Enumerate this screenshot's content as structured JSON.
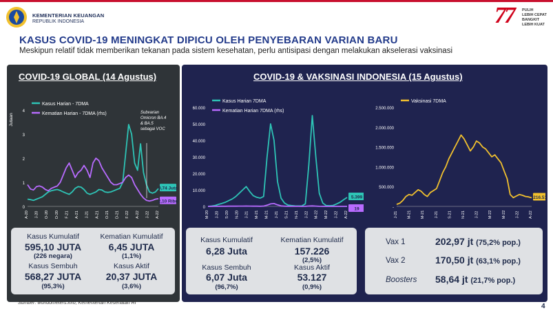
{
  "header": {
    "org_line1": "KEMENTERIAN KEUANGAN",
    "org_line2": "REPUBLIK INDONESIA",
    "brand_number": "77",
    "brand_lines": [
      "PULIH",
      "LEBIH CEPAT",
      "BANGKIT",
      "LEBIH KUAT"
    ],
    "title": "KASUS COVID-19 MENINGKAT DIPICU OLEH PENYEBARAN VARIAN BARU",
    "subtitle": "Meskipun relatif tidak memberikan tekanan pada sistem kesehatan,  perlu antisipasi dengan melakukan akselerasi vaksinasi"
  },
  "colors": {
    "accent": "#c8102e",
    "teal": "#2ec4b6",
    "purple": "#b86bff",
    "gold": "#f2c12e",
    "navy": "#1f234f"
  },
  "panel_global": {
    "title": "COVID-19 GLOBAL (14 Agustus)",
    "stats": [
      {
        "label": "Kasus Kumulatif",
        "value": "595,10 JUTA",
        "sub": "(226 negara)"
      },
      {
        "label": "Kematian Kumulatif",
        "value": "6,45 JUTA",
        "sub": "(1,1%)"
      },
      {
        "label": "Kasus Sembuh",
        "value": "568,27 JUTA",
        "sub": "(95,3%)"
      },
      {
        "label": "Kasus Aktif",
        "value": "20,37 JUTA",
        "sub": "(3,6%)"
      }
    ]
  },
  "panel_indonesia": {
    "title": "COVID-19 & VAKSINASI INDONESIA (15 Agustus)",
    "stats": [
      {
        "label": "Kasus Kumulatif",
        "value": "6,28 Juta",
        "sub": ""
      },
      {
        "label": "Kematian Kumulatif",
        "value": "157.226",
        "sub": "(2,5%)"
      },
      {
        "label": "Kasus Sembuh",
        "value": "6,07 Juta",
        "sub": "(96,7%)"
      },
      {
        "label": "Kasus Aktif",
        "value": "53.127",
        "sub": "(0,9%)"
      }
    ],
    "vaccine": [
      {
        "label": "Vax 1",
        "value": "202,97 jt",
        "pct": "(75,2% pop.)"
      },
      {
        "label": "Vax 2",
        "value": "170,50 jt",
        "pct": "(63,1% pop.)"
      },
      {
        "label": "Boosters",
        "value": "58,64 jt",
        "pct": "(21,7% pop.)"
      }
    ]
  },
  "footer": {
    "source": "Sumber: worldometers.info, Kementerian Kesehatan RI",
    "page": "4"
  },
  "chart_data": [
    {
      "type": "line",
      "title": "",
      "ylabel": "Jutaan",
      "ylim": [
        0,
        4
      ],
      "yticks": [
        "0",
        "1",
        "2",
        "3",
        "4"
      ],
      "x_ticks": [
        "A-20",
        "J-20",
        "O-20",
        "D-20",
        "F-21",
        "A-21",
        "J-21",
        "A-21",
        "O-21",
        "D-21",
        "F-22",
        "A-22",
        "J-22",
        "A-22"
      ],
      "annotation": "Subvarian Omicron BA.4 & BA.5 sebagai VOC",
      "series": [
        {
          "name": "Kasus Harian - 7DMA",
          "color": "#2ec4b6",
          "end_label": "0,74 Juta",
          "values": [
            0.3,
            0.28,
            0.25,
            0.3,
            0.35,
            0.4,
            0.5,
            0.6,
            0.65,
            0.68,
            0.7,
            0.66,
            0.6,
            0.55,
            0.5,
            0.6,
            0.75,
            0.82,
            0.8,
            0.7,
            0.55,
            0.5,
            0.55,
            0.6,
            0.7,
            0.68,
            0.6,
            0.58,
            0.6,
            0.65,
            0.7,
            0.75,
            1.0,
            2.2,
            3.4,
            3.0,
            1.8,
            1.5,
            2.6,
            1.4,
            0.9,
            0.6,
            0.55,
            0.6,
            0.74
          ]
        },
        {
          "name": "Kematian Harian - 7DMA (rhs)",
          "color": "#b86bff",
          "end_label": "2,10 Ribu",
          "values": [
            0.9,
            0.72,
            0.68,
            0.82,
            0.85,
            0.8,
            0.7,
            0.65,
            0.75,
            0.8,
            0.85,
            1.0,
            1.3,
            1.6,
            1.8,
            1.5,
            1.2,
            1.4,
            1.5,
            1.7,
            1.5,
            1.2,
            1.8,
            2.0,
            1.9,
            1.6,
            1.4,
            1.2,
            1.0,
            0.9,
            0.9,
            0.95,
            1.0,
            1.2,
            1.3,
            1.2,
            0.9,
            0.7,
            0.5,
            0.35,
            0.25,
            0.22,
            0.25,
            0.3,
            0.32
          ]
        }
      ]
    },
    {
      "type": "line",
      "title": "",
      "ylim": [
        0,
        60000
      ],
      "yticks": [
        "0",
        "10.000",
        "20.000",
        "30.000",
        "40.000",
        "50.000",
        "60.000"
      ],
      "y2ticks": [
        "M-20"
      ],
      "x_ticks": [
        "M-20",
        "J-20",
        "S-20",
        "N-20",
        "J-21",
        "M-21",
        "M-21",
        "J-21",
        "S-21",
        "N-21",
        "J-22",
        "M-22",
        "M-22",
        "J-22",
        "A-22"
      ],
      "series": [
        {
          "name": "Kasus Harian 7DMA",
          "color": "#2ec4b6",
          "end_label": "5.399",
          "values": [
            0,
            200,
            500,
            1200,
            1800,
            2500,
            3500,
            4500,
            6000,
            8000,
            10000,
            12000,
            9000,
            6500,
            5500,
            5000,
            6000,
            30000,
            50000,
            40000,
            15000,
            5000,
            2000,
            800,
            500,
            300,
            250,
            300,
            1500,
            25000,
            55000,
            30000,
            8000,
            2000,
            500,
            400,
            600,
            1500,
            2500,
            4000,
            5399
          ]
        },
        {
          "name": "Kematian Harian 7DMA (rhs)",
          "color": "#b86bff",
          "end_label": "19",
          "values": [
            0,
            20,
            40,
            60,
            80,
            100,
            110,
            120,
            140,
            160,
            180,
            200,
            170,
            140,
            120,
            100,
            150,
            700,
            1500,
            1700,
            900,
            300,
            120,
            60,
            40,
            30,
            25,
            20,
            40,
            200,
            280,
            160,
            60,
            20,
            10,
            8,
            8,
            10,
            12,
            15,
            19
          ]
        }
      ]
    },
    {
      "type": "line",
      "title": "",
      "ylim": [
        0,
        2500000
      ],
      "yticks": [
        "-",
        "500.000",
        "1.000.000",
        "1.500.000",
        "2.000.000",
        "2.500.000"
      ],
      "x_ticks": [
        "J-21",
        "M-21",
        "M-21",
        "J-21",
        "S-21",
        "N-21",
        "J-22",
        "M-22",
        "M-22",
        "J-22",
        "A-22"
      ],
      "series": [
        {
          "name": "Vaksinasi 7DMA",
          "color": "#f2c12e",
          "end_label": "216.518",
          "values": [
            50000,
            80000,
            150000,
            250000,
            300000,
            280000,
            350000,
            420000,
            380000,
            300000,
            250000,
            350000,
            400000,
            450000,
            650000,
            850000,
            1000000,
            1200000,
            1350000,
            1500000,
            1650000,
            1800000,
            1700000,
            1550000,
            1400000,
            1500000,
            1650000,
            1600000,
            1500000,
            1450000,
            1350000,
            1250000,
            1300000,
            1200000,
            1100000,
            900000,
            700000,
            300000,
            220000,
            260000,
            300000,
            280000,
            250000,
            240000,
            216518
          ]
        }
      ]
    }
  ]
}
